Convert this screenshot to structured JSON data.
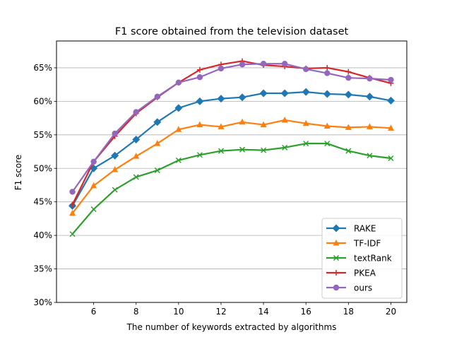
{
  "chart_data": {
    "type": "line",
    "title": "F1 score obtained from the television dataset",
    "xlabel": "The number of keywords extracted by algorithms",
    "ylabel": "F1 score",
    "x": [
      5,
      6,
      7,
      8,
      9,
      10,
      11,
      12,
      13,
      14,
      15,
      16,
      17,
      18,
      19,
      20
    ],
    "xlim": [
      4.25,
      20.75
    ],
    "ylim": [
      30,
      69
    ],
    "xticks": [
      6,
      8,
      10,
      12,
      14,
      16,
      18,
      20
    ],
    "xtick_labels": [
      "6",
      "8",
      "10",
      "12",
      "14",
      "16",
      "18",
      "20"
    ],
    "yticks": [
      30,
      35,
      40,
      45,
      50,
      55,
      60,
      65
    ],
    "ytick_labels": [
      "30%",
      "35%",
      "40%",
      "45%",
      "50%",
      "55%",
      "60%",
      "65%"
    ],
    "grid": "horizontal",
    "legend_position": "lower-right",
    "series": [
      {
        "name": "RAKE",
        "color": "#1f77b4",
        "marker": "diamond",
        "values": [
          44.4,
          50.0,
          51.9,
          54.3,
          56.9,
          59.0,
          60.0,
          60.4,
          60.6,
          61.2,
          61.2,
          61.4,
          61.1,
          61.0,
          60.7,
          60.1
        ]
      },
      {
        "name": "TF-IDF",
        "color": "#ff7f0e",
        "marker": "triangle",
        "values": [
          43.3,
          47.4,
          49.8,
          51.8,
          53.7,
          55.8,
          56.5,
          56.2,
          56.9,
          56.5,
          57.2,
          56.7,
          56.3,
          56.1,
          56.2,
          56.0
        ]
      },
      {
        "name": "textRank",
        "color": "#2ca02c",
        "marker": "x",
        "values": [
          40.2,
          43.9,
          46.8,
          48.7,
          49.7,
          51.2,
          52.0,
          52.6,
          52.8,
          52.7,
          53.1,
          53.7,
          53.7,
          52.6,
          51.9,
          51.5
        ]
      },
      {
        "name": "PKEA",
        "color": "#d62728",
        "marker": "plus",
        "values": [
          44.6,
          51.0,
          54.8,
          58.2,
          60.6,
          62.8,
          64.7,
          65.5,
          66.0,
          65.4,
          65.2,
          64.9,
          65.0,
          64.4,
          63.5,
          62.7
        ]
      },
      {
        "name": "ours",
        "color": "#9467bd",
        "marker": "circle",
        "values": [
          46.5,
          51.0,
          55.2,
          58.4,
          60.7,
          62.8,
          63.6,
          64.9,
          65.5,
          65.6,
          65.6,
          64.8,
          64.2,
          63.5,
          63.4,
          63.2
        ]
      }
    ]
  }
}
